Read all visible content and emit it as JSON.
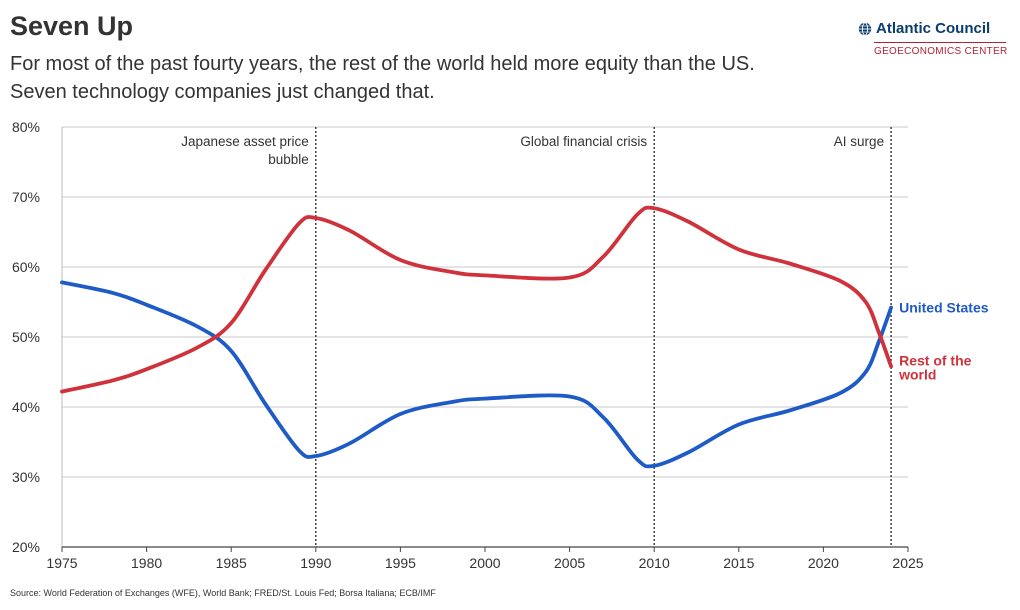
{
  "header": {
    "title": "Seven Up",
    "subtitle_line1": "For most of the past fourty years, the rest of the world held more equity than the US.",
    "subtitle_line2": "Seven technology companies just changed that."
  },
  "logo": {
    "name": "Atlantic Council",
    "subtitle": "GEOECONOMICS CENTER",
    "icon": "globe-icon",
    "colors": {
      "name": "#0b3c6e",
      "subtitle": "#b22234"
    }
  },
  "source": "Source: World Federation of Exchanges (WFE), World Bank; FRED/St. Louis Fed; Borsa Italiana; ECB/IMF",
  "chart_data": {
    "type": "line",
    "xlim": [
      1975,
      2025
    ],
    "ylim": [
      20,
      80
    ],
    "x_ticks": [
      1975,
      1980,
      1985,
      1990,
      1995,
      2000,
      2005,
      2010,
      2015,
      2020,
      2025
    ],
    "x_tick_labels": [
      "1975",
      "1980",
      "1985",
      "1990",
      "1995",
      "2000",
      "2005",
      "2010",
      "2015",
      "2020",
      "2025"
    ],
    "y_ticks": [
      20,
      30,
      40,
      50,
      60,
      70,
      80
    ],
    "y_tick_labels": [
      "20%",
      "30%",
      "40%",
      "50%",
      "60%",
      "70%",
      "80%"
    ],
    "grid": "horizontal",
    "series": [
      {
        "name": "United States",
        "label_lines": [
          "United States"
        ],
        "color": "#1f5bc7",
        "points": [
          [
            1975,
            57.8
          ],
          [
            1978,
            56.3
          ],
          [
            1980,
            54.6
          ],
          [
            1983,
            51.5
          ],
          [
            1985,
            48.0
          ],
          [
            1987,
            40.5
          ],
          [
            1989,
            33.8
          ],
          [
            1990,
            33.0
          ],
          [
            1992,
            34.8
          ],
          [
            1995,
            39.0
          ],
          [
            1998,
            40.7
          ],
          [
            2000,
            41.2
          ],
          [
            2005,
            41.5
          ],
          [
            2007,
            38.5
          ],
          [
            2009,
            32.5
          ],
          [
            2010,
            31.6
          ],
          [
            2012,
            33.5
          ],
          [
            2015,
            37.5
          ],
          [
            2018,
            39.5
          ],
          [
            2021,
            42.0
          ],
          [
            2022.5,
            45.0
          ],
          [
            2023.3,
            49.5
          ],
          [
            2024,
            54.2
          ]
        ]
      },
      {
        "name": "Rest of the world",
        "label_lines": [
          "Rest of the",
          "world"
        ],
        "color": "#d0323c",
        "points": [
          [
            1975,
            42.2
          ],
          [
            1978,
            43.8
          ],
          [
            1980,
            45.4
          ],
          [
            1983,
            48.5
          ],
          [
            1985,
            52.0
          ],
          [
            1987,
            59.5
          ],
          [
            1989,
            66.2
          ],
          [
            1990,
            67.0
          ],
          [
            1992,
            65.2
          ],
          [
            1995,
            61.0
          ],
          [
            1998,
            59.3
          ],
          [
            2000,
            58.8
          ],
          [
            2005,
            58.5
          ],
          [
            2007,
            61.5
          ],
          [
            2009,
            67.5
          ],
          [
            2010,
            68.4
          ],
          [
            2012,
            66.5
          ],
          [
            2015,
            62.5
          ],
          [
            2018,
            60.5
          ],
          [
            2021,
            58.0
          ],
          [
            2022.5,
            55.0
          ],
          [
            2023.3,
            50.5
          ],
          [
            2024,
            45.8
          ]
        ]
      }
    ],
    "annotations": [
      {
        "x": 1990,
        "label_lines": [
          "Japanese asset price",
          "bubble"
        ]
      },
      {
        "x": 2010,
        "label_lines": [
          "Global financial crisis"
        ]
      },
      {
        "x": 2024,
        "label_lines": [
          "AI surge"
        ]
      }
    ]
  }
}
